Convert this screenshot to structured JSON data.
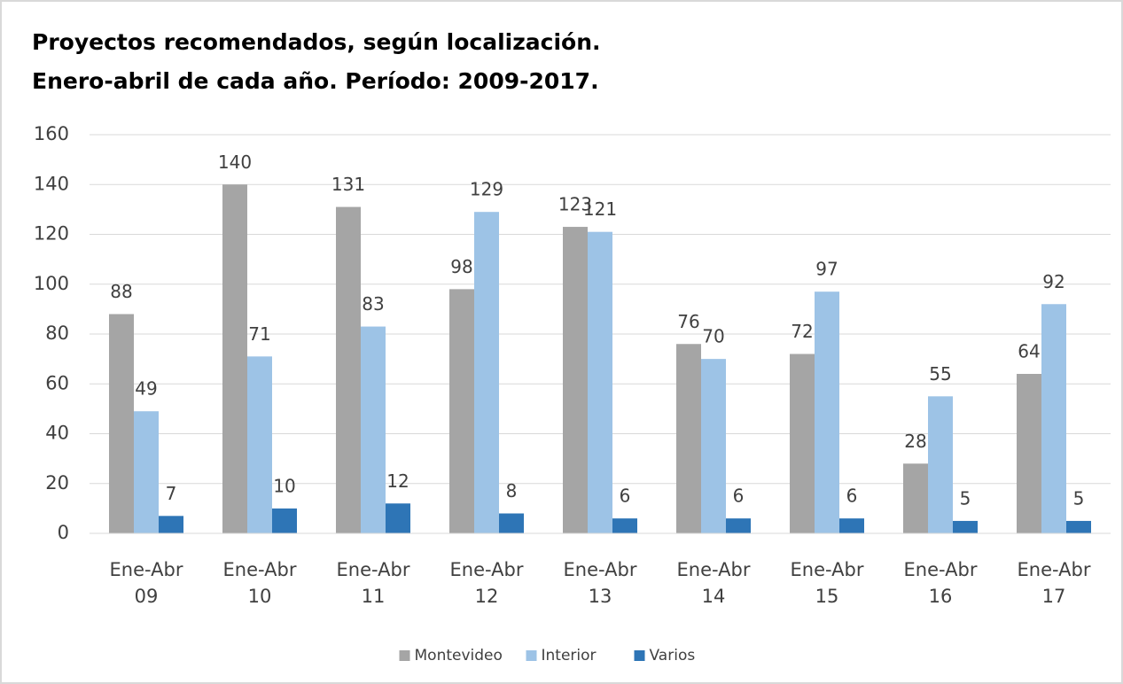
{
  "chart_data": {
    "type": "bar",
    "title": "Proyectos recomendados, según localización.",
    "subtitle": "Enero-abril de cada año. Período: 2009-2017.",
    "categories": [
      "Ene-Abr 09",
      "Ene-Abr 10",
      "Ene-Abr 11",
      "Ene-Abr 12",
      "Ene-Abr 13",
      "Ene-Abr 14",
      "Ene-Abr 15",
      "Ene-Abr 16",
      "Ene-Abr 17"
    ],
    "series": [
      {
        "name": "Montevideo",
        "color": "#a5a5a5",
        "values": [
          88,
          140,
          131,
          98,
          123,
          76,
          72,
          28,
          64
        ]
      },
      {
        "name": "Interior",
        "color": "#9dc3e6",
        "values": [
          49,
          71,
          83,
          129,
          121,
          70,
          97,
          55,
          92
        ]
      },
      {
        "name": "Varios",
        "color": "#2e75b6",
        "values": [
          7,
          10,
          12,
          8,
          6,
          6,
          6,
          5,
          5
        ]
      }
    ],
    "ylim": [
      0,
      160
    ],
    "yticks": [
      0,
      20,
      40,
      60,
      80,
      100,
      120,
      140,
      160
    ],
    "grid": true,
    "legend": "bottom"
  }
}
